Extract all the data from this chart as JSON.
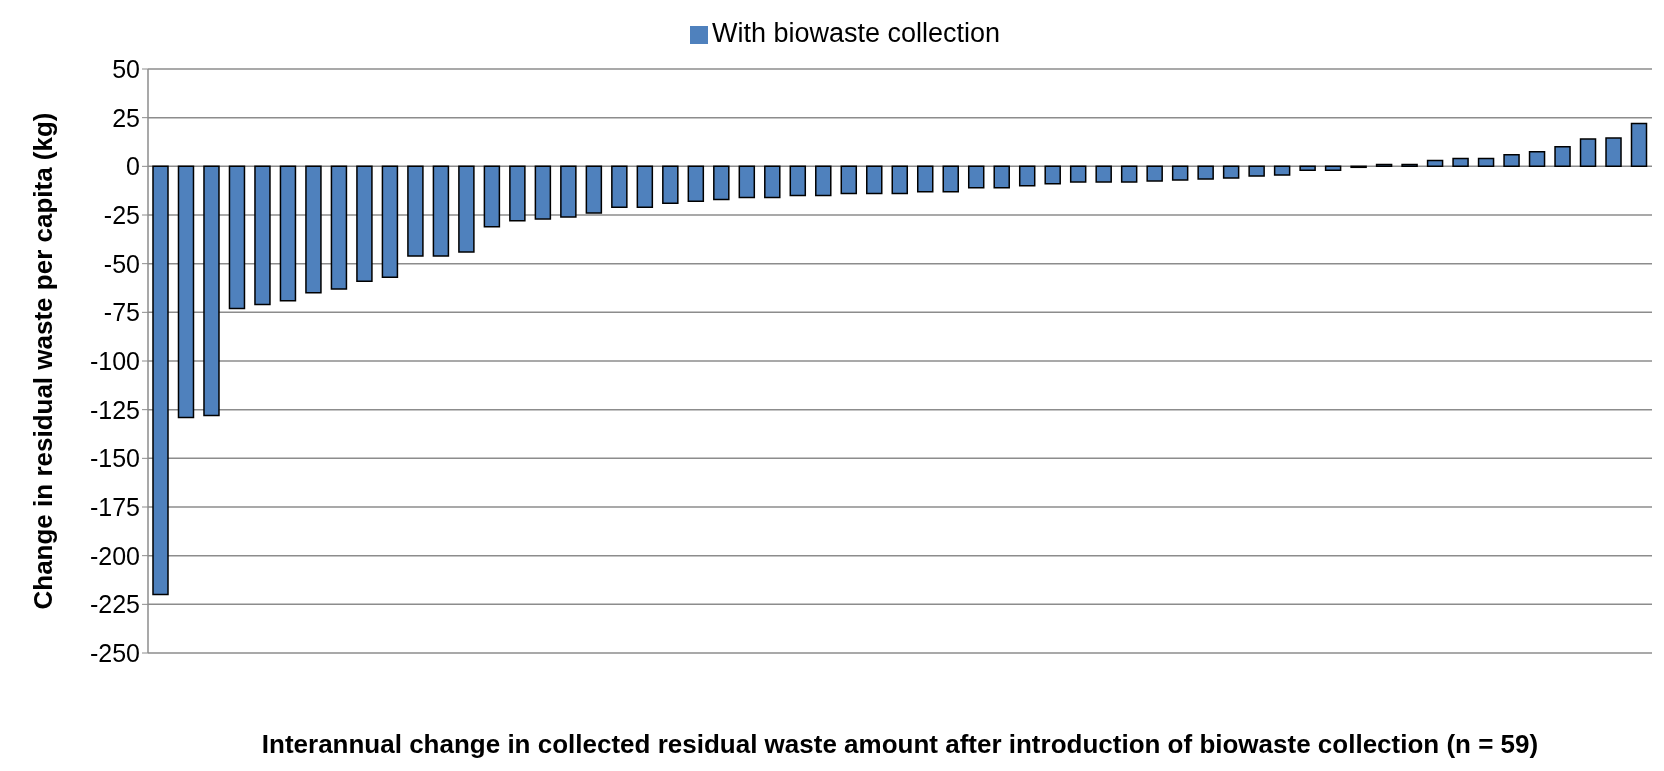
{
  "chart_data": {
    "type": "bar",
    "xlabel": "Interannual change in collected residual waste amount after introduction of biowaste collection (n = 59)",
    "ylabel": "Change in residual waste per capita (kg)",
    "categories": [
      null,
      null,
      null,
      null,
      null,
      null,
      null,
      null,
      null,
      null,
      null,
      null,
      null,
      null,
      null,
      null,
      null,
      null,
      null,
      null,
      null,
      null,
      null,
      null,
      null,
      null,
      null,
      null,
      null,
      null,
      null,
      null,
      null,
      null,
      null,
      null,
      null,
      null,
      null,
      null,
      null,
      null,
      null,
      null,
      null,
      null,
      null,
      null,
      null,
      null,
      null,
      null,
      null,
      null,
      null,
      null,
      null,
      null,
      null
    ],
    "series": [
      {
        "name": "With biowaste collection",
        "color": "#4f81bd",
        "values": [
          -220,
          -129,
          -128,
          -73,
          -71,
          -69,
          -65,
          -63,
          -59,
          -57,
          -46,
          -46,
          -44,
          -31,
          -28,
          -27,
          -26,
          -24,
          -21,
          -21,
          -19,
          -18,
          -17,
          -16,
          -16,
          -15,
          -15,
          -14,
          -14,
          -14,
          -13,
          -13,
          -11,
          -11,
          -10,
          -9,
          -8,
          -8,
          -8,
          -7.5,
          -7,
          -6.5,
          -6,
          -5,
          -4.5,
          -2,
          -2,
          -0.5,
          1,
          1,
          3,
          4,
          4,
          6,
          7.5,
          10,
          14,
          14.5,
          22
        ]
      }
    ],
    "ylim": [
      -250,
      50
    ],
    "yticks": [
      -250,
      -225,
      -200,
      -175,
      -150,
      -125,
      -100,
      -75,
      -50,
      -25,
      0,
      25,
      50
    ],
    "grid": "y",
    "legend": "top",
    "tick_labels": "y"
  }
}
